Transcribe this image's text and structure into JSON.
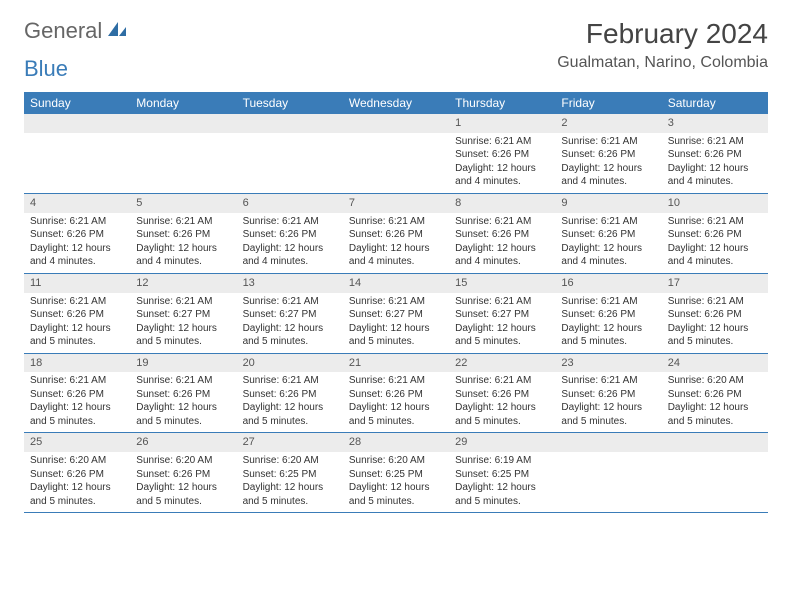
{
  "logo": {
    "text1": "General",
    "text2": "Blue"
  },
  "header": {
    "title": "February 2024",
    "location": "Gualmatan, Narino, Colombia"
  },
  "colors": {
    "header_bar": "#3a7cb8",
    "day_number_bg": "#ececec",
    "text": "#333333",
    "logo_blue": "#3a7cb8"
  },
  "calendar": {
    "weekdays": [
      "Sunday",
      "Monday",
      "Tuesday",
      "Wednesday",
      "Thursday",
      "Friday",
      "Saturday"
    ],
    "weeks": [
      [
        null,
        null,
        null,
        null,
        {
          "n": "1",
          "sunrise": "6:21 AM",
          "sunset": "6:26 PM",
          "daylight": "12 hours and 4 minutes."
        },
        {
          "n": "2",
          "sunrise": "6:21 AM",
          "sunset": "6:26 PM",
          "daylight": "12 hours and 4 minutes."
        },
        {
          "n": "3",
          "sunrise": "6:21 AM",
          "sunset": "6:26 PM",
          "daylight": "12 hours and 4 minutes."
        }
      ],
      [
        {
          "n": "4",
          "sunrise": "6:21 AM",
          "sunset": "6:26 PM",
          "daylight": "12 hours and 4 minutes."
        },
        {
          "n": "5",
          "sunrise": "6:21 AM",
          "sunset": "6:26 PM",
          "daylight": "12 hours and 4 minutes."
        },
        {
          "n": "6",
          "sunrise": "6:21 AM",
          "sunset": "6:26 PM",
          "daylight": "12 hours and 4 minutes."
        },
        {
          "n": "7",
          "sunrise": "6:21 AM",
          "sunset": "6:26 PM",
          "daylight": "12 hours and 4 minutes."
        },
        {
          "n": "8",
          "sunrise": "6:21 AM",
          "sunset": "6:26 PM",
          "daylight": "12 hours and 4 minutes."
        },
        {
          "n": "9",
          "sunrise": "6:21 AM",
          "sunset": "6:26 PM",
          "daylight": "12 hours and 4 minutes."
        },
        {
          "n": "10",
          "sunrise": "6:21 AM",
          "sunset": "6:26 PM",
          "daylight": "12 hours and 4 minutes."
        }
      ],
      [
        {
          "n": "11",
          "sunrise": "6:21 AM",
          "sunset": "6:26 PM",
          "daylight": "12 hours and 5 minutes."
        },
        {
          "n": "12",
          "sunrise": "6:21 AM",
          "sunset": "6:27 PM",
          "daylight": "12 hours and 5 minutes."
        },
        {
          "n": "13",
          "sunrise": "6:21 AM",
          "sunset": "6:27 PM",
          "daylight": "12 hours and 5 minutes."
        },
        {
          "n": "14",
          "sunrise": "6:21 AM",
          "sunset": "6:27 PM",
          "daylight": "12 hours and 5 minutes."
        },
        {
          "n": "15",
          "sunrise": "6:21 AM",
          "sunset": "6:27 PM",
          "daylight": "12 hours and 5 minutes."
        },
        {
          "n": "16",
          "sunrise": "6:21 AM",
          "sunset": "6:26 PM",
          "daylight": "12 hours and 5 minutes."
        },
        {
          "n": "17",
          "sunrise": "6:21 AM",
          "sunset": "6:26 PM",
          "daylight": "12 hours and 5 minutes."
        }
      ],
      [
        {
          "n": "18",
          "sunrise": "6:21 AM",
          "sunset": "6:26 PM",
          "daylight": "12 hours and 5 minutes."
        },
        {
          "n": "19",
          "sunrise": "6:21 AM",
          "sunset": "6:26 PM",
          "daylight": "12 hours and 5 minutes."
        },
        {
          "n": "20",
          "sunrise": "6:21 AM",
          "sunset": "6:26 PM",
          "daylight": "12 hours and 5 minutes."
        },
        {
          "n": "21",
          "sunrise": "6:21 AM",
          "sunset": "6:26 PM",
          "daylight": "12 hours and 5 minutes."
        },
        {
          "n": "22",
          "sunrise": "6:21 AM",
          "sunset": "6:26 PM",
          "daylight": "12 hours and 5 minutes."
        },
        {
          "n": "23",
          "sunrise": "6:21 AM",
          "sunset": "6:26 PM",
          "daylight": "12 hours and 5 minutes."
        },
        {
          "n": "24",
          "sunrise": "6:20 AM",
          "sunset": "6:26 PM",
          "daylight": "12 hours and 5 minutes."
        }
      ],
      [
        {
          "n": "25",
          "sunrise": "6:20 AM",
          "sunset": "6:26 PM",
          "daylight": "12 hours and 5 minutes."
        },
        {
          "n": "26",
          "sunrise": "6:20 AM",
          "sunset": "6:26 PM",
          "daylight": "12 hours and 5 minutes."
        },
        {
          "n": "27",
          "sunrise": "6:20 AM",
          "sunset": "6:25 PM",
          "daylight": "12 hours and 5 minutes."
        },
        {
          "n": "28",
          "sunrise": "6:20 AM",
          "sunset": "6:25 PM",
          "daylight": "12 hours and 5 minutes."
        },
        {
          "n": "29",
          "sunrise": "6:19 AM",
          "sunset": "6:25 PM",
          "daylight": "12 hours and 5 minutes."
        },
        null,
        null
      ]
    ]
  },
  "labels": {
    "sunrise": "Sunrise:",
    "sunset": "Sunset:",
    "daylight": "Daylight:"
  }
}
